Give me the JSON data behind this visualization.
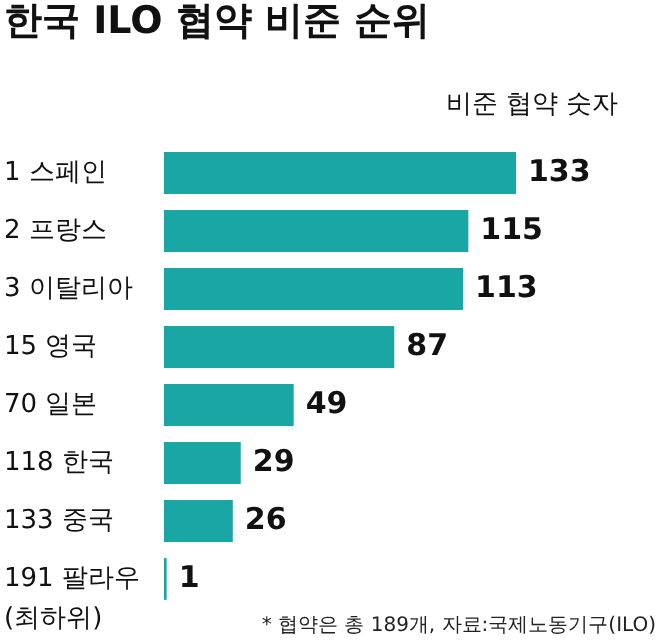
{
  "chart_data": {
    "type": "bar",
    "orientation": "horizontal",
    "title": "한국 ILO 협약 비준 순위",
    "xlabel": "비준 협약 숫자",
    "categories": [
      "1 스페인",
      "2 프랑스",
      "3 이탈리아",
      "15 영국",
      "70 일본",
      "118 한국",
      "133 중국",
      "191 팔라우"
    ],
    "values": [
      133,
      115,
      113,
      87,
      49,
      29,
      26,
      1
    ],
    "color": "#1aa6a5",
    "data_labels": true,
    "annotations": [
      "(최하위)",
      "* 협약은 총 189개, 자료:국제노동기구(ILO)"
    ]
  }
}
